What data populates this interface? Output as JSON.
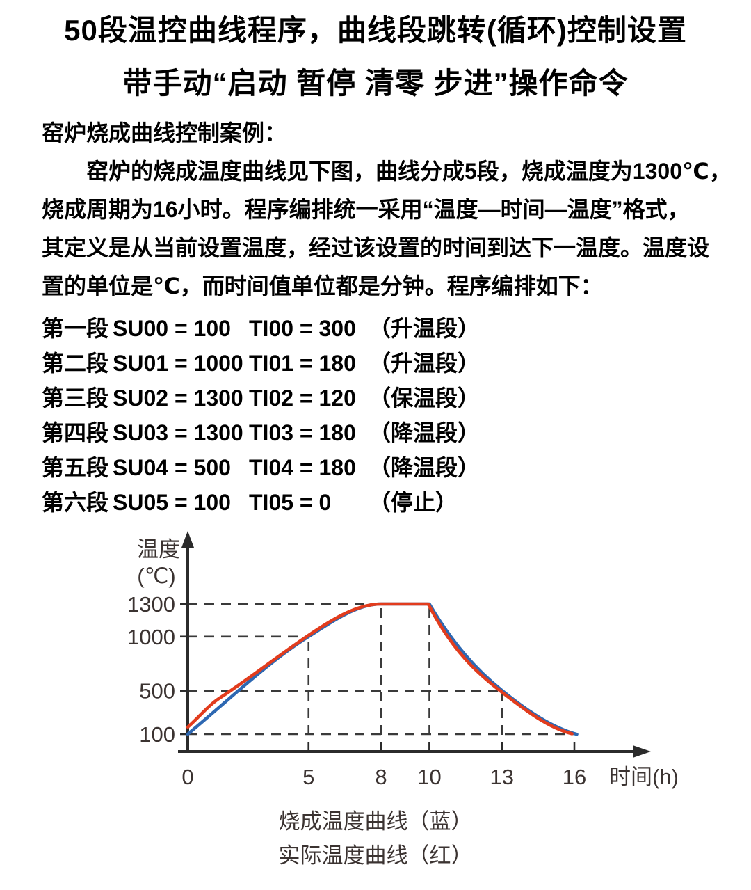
{
  "title": {
    "line1": "50段温控曲线程序，曲线段跳转(循环)控制设置",
    "line2": "带手动“启动 暂停 清零 步进”操作命令"
  },
  "body": {
    "heading": "窑炉烧成曲线控制案例：",
    "lines": [
      "窑炉的烧成温度曲线见下图，曲线分成5段，烧成温度为1300℃，",
      "烧成周期为16小时。程序编排统一采用“温度—时间—温度”格式，",
      "其定义是从当前设置温度，经过该设置的时间到达下一温度。温度设",
      "置的单位是℃，而时间值单位都是分钟。程序编排如下："
    ]
  },
  "segments": [
    {
      "label": "第一段",
      "su": "SU00 = 100",
      "ti": "TI00 = 300",
      "note": "（升温段）"
    },
    {
      "label": "第二段",
      "su": "SU01 = 1000",
      "ti": "TI01 = 180",
      "note": "（升温段）"
    },
    {
      "label": "第三段",
      "su": "SU02 = 1300",
      "ti": "TI02 = 120",
      "note": "（保温段）"
    },
    {
      "label": "第四段",
      "su": "SU03 = 1300",
      "ti": "TI03 = 180",
      "note": "（降温段）"
    },
    {
      "label": "第五段",
      "su": "SU04 = 500",
      "ti": "TI04 = 180",
      "note": "（降温段）"
    },
    {
      "label": "第六段",
      "su": "SU05 = 100",
      "ti": "TI05 = 0",
      "note": "（停止）"
    }
  ],
  "chart_data": {
    "type": "line",
    "title": "",
    "xlabel": "时间(h)",
    "ylabel": "温度(℃)",
    "ylabel_lines": [
      "温度",
      "(℃)"
    ],
    "x_ticks": [
      0,
      5,
      8,
      10,
      13,
      16
    ],
    "y_ticks": [
      100,
      500,
      1000,
      1300
    ],
    "xlim": [
      0,
      18
    ],
    "ylim": [
      0,
      1500
    ],
    "grid": "dashed guide lines from axes to curve knot points",
    "legend_position": "below",
    "series": [
      {
        "name": "烧成温度曲线（蓝）",
        "color": "#2e68b2",
        "x": [
          0,
          5,
          8,
          10,
          13,
          16
        ],
        "values": [
          100,
          1000,
          1300,
          1300,
          500,
          100
        ]
      },
      {
        "name": "实际温度曲线（红）",
        "color": "#e23c1d",
        "x": [
          0,
          5,
          8,
          10,
          13,
          16
        ],
        "values": [
          160,
          1010,
          1300,
          1300,
          490,
          100
        ]
      }
    ],
    "guides": {
      "horizontal": [
        {
          "value": 1300,
          "to_x": 8
        },
        {
          "value": 1000,
          "to_x": 5
        },
        {
          "value": 500,
          "to_x": 13
        },
        {
          "value": 100,
          "to_x": 16
        }
      ],
      "vertical": [
        {
          "x": 5,
          "to_value": 1000
        },
        {
          "x": 8,
          "to_value": 1300
        },
        {
          "x": 10,
          "to_value": 1300
        },
        {
          "x": 13,
          "to_value": 500
        }
      ]
    },
    "render_hints": {
      "blue_anchors": [
        [
          0,
          100,
          185
        ],
        [
          5,
          1000,
          140
        ],
        [
          8,
          1300,
          0
        ],
        [
          10,
          1300,
          0,
          -380
        ],
        [
          13,
          503,
          -180
        ],
        [
          16.1,
          99,
          -60
        ]
      ],
      "red_anchors": [
        [
          0,
          165,
          195
        ],
        [
          1.3,
          430,
          145
        ],
        [
          5,
          1012,
          150
        ],
        [
          8,
          1300,
          0
        ],
        [
          9.95,
          1300,
          0,
          -430
        ],
        [
          13,
          487,
          -172
        ],
        [
          15.9,
          104,
          -55
        ]
      ],
      "axis_color": "#2b2b2b",
      "guide_color": "#3a3a3a",
      "label_color": "#3b3331"
    }
  },
  "legend": {
    "line1": "烧成温度曲线（蓝）",
    "line2": "实际温度曲线（红）"
  }
}
